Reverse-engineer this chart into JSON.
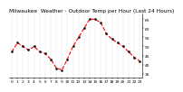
{
  "title": "Milwaukee  Weather - Outdoor Temp per Hour (Last 24 Hours)",
  "hours": [
    0,
    1,
    2,
    3,
    4,
    5,
    6,
    7,
    8,
    9,
    10,
    11,
    12,
    13,
    14,
    15,
    16,
    17,
    18,
    19,
    20,
    21,
    22,
    23
  ],
  "temps": [
    47,
    52,
    50,
    48,
    50,
    47,
    46,
    43,
    38,
    37,
    43,
    50,
    55,
    60,
    65,
    65,
    63,
    57,
    54,
    52,
    50,
    47,
    44,
    42
  ],
  "line_color": "#ff0000",
  "marker_color": "#000000",
  "bg_color": "#ffffff",
  "grid_color": "#999999",
  "title_color": "#000000",
  "ylim": [
    33,
    68
  ],
  "yticks": [
    35,
    40,
    45,
    50,
    55,
    60,
    65
  ],
  "title_fontsize": 4.2,
  "tick_fontsize": 3.2,
  "line_width": 0.8,
  "marker_size": 1.5
}
